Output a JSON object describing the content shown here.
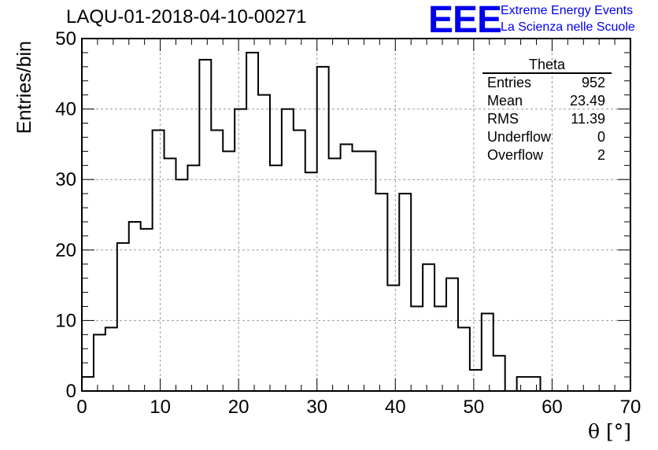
{
  "title": "LAQU-01-2018-04-10-00271",
  "logo": {
    "mark": "EEE",
    "line1": "Extreme Energy Events",
    "line2": "La Scienza nelle Scuole",
    "color": "#0000ee"
  },
  "stats_box": {
    "name": "Theta",
    "rows": [
      {
        "label": "Entries",
        "value": "952"
      },
      {
        "label": "Mean",
        "value": "23.49"
      },
      {
        "label": "RMS",
        "value": "11.39"
      },
      {
        "label": "Underflow",
        "value": "0"
      },
      {
        "label": "Overflow",
        "value": "2"
      }
    ]
  },
  "chart_data": {
    "type": "bar",
    "title": "LAQU-01-2018-04-10-00271",
    "xlabel": "θ [°]",
    "ylabel": "Entries/bin",
    "xlim": [
      0,
      70
    ],
    "ylim": [
      0,
      50
    ],
    "xticks": [
      0,
      10,
      20,
      30,
      40,
      50,
      60,
      70
    ],
    "yticks": [
      0,
      10,
      20,
      30,
      40,
      50
    ],
    "grid": true,
    "histogram": true,
    "bin_width": 1.5,
    "x_start": 0,
    "values": [
      2,
      8,
      9,
      21,
      24,
      23,
      37,
      33,
      30,
      32,
      47,
      37,
      34,
      40,
      48,
      42,
      32,
      40,
      37,
      31,
      46,
      33,
      35,
      34,
      34,
      28,
      15,
      28,
      12,
      18,
      12,
      16,
      9,
      3,
      11,
      5,
      0,
      2,
      2,
      0
    ]
  }
}
